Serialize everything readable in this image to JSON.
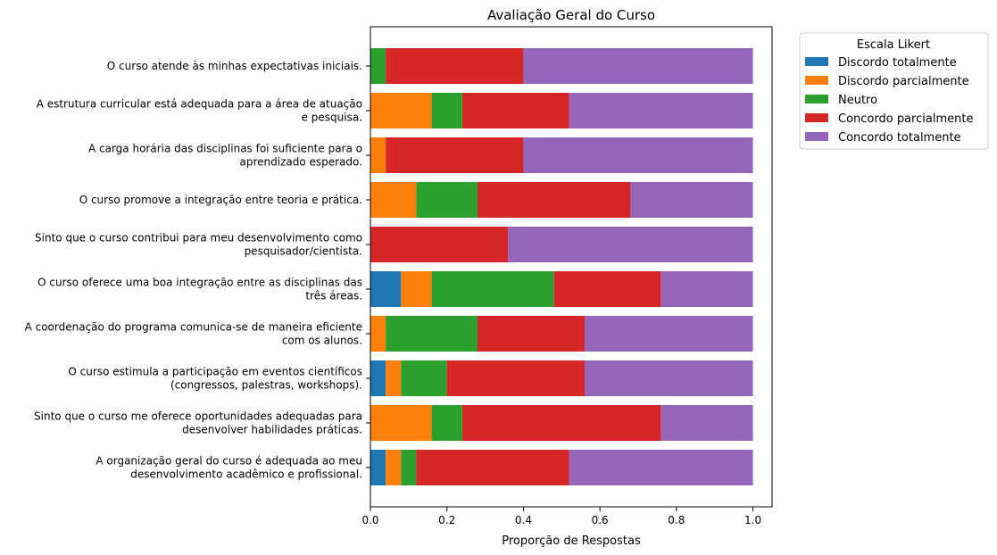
{
  "chart_data": {
    "type": "bar",
    "orientation": "horizontal",
    "stacked": true,
    "title": "Avaliação Geral do Curso",
    "xlabel": "Proporção de Respostas",
    "ylabel": "",
    "xlim": [
      0,
      1.05
    ],
    "xticks": [
      0.0,
      0.2,
      0.4,
      0.6,
      0.8,
      1.0
    ],
    "xtick_labels": [
      "0.0",
      "0.2",
      "0.4",
      "0.6",
      "0.8",
      "1.0"
    ],
    "grid": false,
    "legend": {
      "title": "Escala Likert",
      "placement": "outside upper right"
    },
    "categories": [
      [
        "O curso atende às minhas expectativas iniciais."
      ],
      [
        "A estrutura curricular está adequada para a área de atuação",
        "e pesquisa."
      ],
      [
        "A carga horária das disciplinas foi suficiente para o",
        "aprendizado esperado."
      ],
      [
        "O curso promove a integração entre teoria e prática."
      ],
      [
        "Sinto que o curso contribui para meu desenvolvimento como",
        "pesquisador/cientista."
      ],
      [
        "O curso oferece uma boa integração entre as disciplinas das",
        "três áreas."
      ],
      [
        "A coordenação do programa comunica-se de maneira eficiente",
        "com os alunos."
      ],
      [
        "O curso estimula a participação em eventos científicos",
        "(congressos, palestras, workshops)."
      ],
      [
        "Sinto que o curso me oferece oportunidades adequadas para",
        "desenvolver habilidades práticas."
      ],
      [
        "A organização geral do curso é adequada ao meu",
        "desenvolvimento acadêmico e profissional."
      ]
    ],
    "series": [
      {
        "name": "Discordo totalmente",
        "color": "#1f77b4",
        "values": [
          0.0,
          0.0,
          0.0,
          0.0,
          0.0,
          0.08,
          0.0,
          0.04,
          0.0,
          0.04
        ]
      },
      {
        "name": "Discordo parcialmente",
        "color": "#ff7f0e",
        "values": [
          0.0,
          0.16,
          0.04,
          0.12,
          0.0,
          0.08,
          0.04,
          0.04,
          0.16,
          0.04
        ]
      },
      {
        "name": "Neutro",
        "color": "#2ca02c",
        "values": [
          0.04,
          0.08,
          0.0,
          0.16,
          0.0,
          0.32,
          0.24,
          0.12,
          0.08,
          0.04
        ]
      },
      {
        "name": "Concordo parcialmente",
        "color": "#d62728",
        "values": [
          0.36,
          0.28,
          0.36,
          0.4,
          0.36,
          0.28,
          0.28,
          0.36,
          0.52,
          0.4
        ]
      },
      {
        "name": "Concordo totalmente",
        "color": "#9467bd",
        "values": [
          0.6,
          0.48,
          0.6,
          0.32,
          0.64,
          0.24,
          0.44,
          0.44,
          0.24,
          0.48
        ]
      }
    ]
  }
}
